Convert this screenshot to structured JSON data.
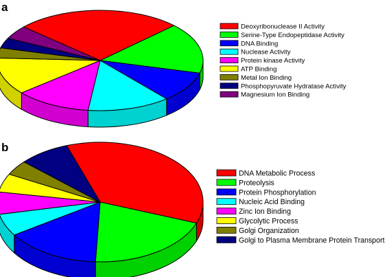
{
  "chart_data": [
    {
      "type": "pie",
      "panel_label": "a",
      "categories": [
        "Deoxyribonuclease II Activity",
        "Serine-Type Endopeptidase Activity",
        "DNA Binding",
        "Nuclease Activity",
        "Protein kinase Activity",
        "ATP Binding",
        "Metal Ion Binding",
        "Phosphopyruvate Hydratase Activity",
        "Magnesium Ion Binding"
      ],
      "values": [
        24,
        15,
        9,
        12,
        11,
        11,
        3,
        3,
        4
      ],
      "colors": [
        "#ff0000",
        "#00ff00",
        "#0000ff",
        "#00ffff",
        "#ff00ff",
        "#ffff00",
        "#808000",
        "#000080",
        "#800080"
      ],
      "legend_position": "right",
      "style": "3d"
    },
    {
      "type": "pie",
      "panel_label": "b",
      "categories": [
        "DNA Metabolic Process",
        "Proteolysis",
        "Protein Phosphorylation",
        "Nucleic Acid Binding",
        "Zinc Ion Binding",
        "Glycolytic Process",
        "Golgi Organization",
        "Golgi to Plasma Membrane Protein Transport"
      ],
      "values": [
        36,
        20,
        15,
        6,
        6,
        5,
        4,
        8
      ],
      "colors": [
        "#ff0000",
        "#00ff00",
        "#0000ff",
        "#00ffff",
        "#ff00ff",
        "#ffff00",
        "#808000",
        "#000080"
      ],
      "legend_position": "right",
      "style": "3d"
    }
  ]
}
